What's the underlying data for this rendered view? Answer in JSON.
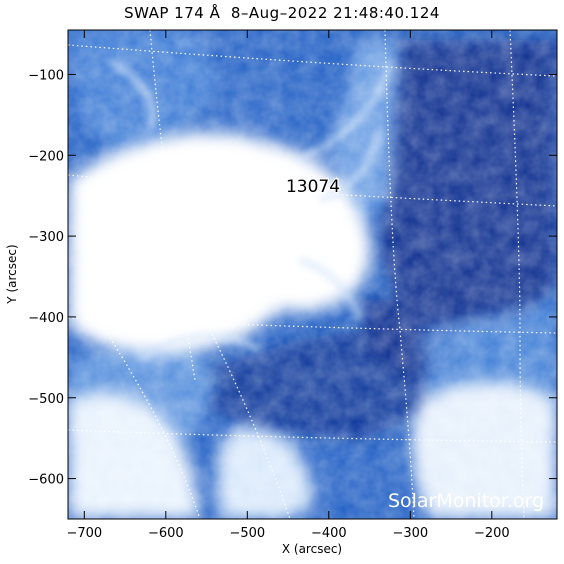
{
  "title": "SWAP 174 Å  8–Aug–2022 21:48:40.124",
  "xaxis": {
    "label": "X (arcsec)",
    "range": [
      -720,
      -120
    ],
    "ticks": [
      {
        "value": -700,
        "label": "−700"
      },
      {
        "value": -600,
        "label": "−600"
      },
      {
        "value": -500,
        "label": "−500"
      },
      {
        "value": -400,
        "label": "−400"
      },
      {
        "value": -300,
        "label": "−300"
      },
      {
        "value": -200,
        "label": "−200"
      }
    ]
  },
  "yaxis": {
    "label": "Y (arcsec)",
    "range": [
      -650,
      -45
    ],
    "ticks": [
      {
        "value": -100,
        "label": "−100"
      },
      {
        "value": -200,
        "label": "−200"
      },
      {
        "value": -300,
        "label": "−300"
      },
      {
        "value": -400,
        "label": "−400"
      },
      {
        "value": -500,
        "label": "−500"
      },
      {
        "value": -600,
        "label": "−600"
      }
    ]
  },
  "active_region": {
    "label": "13074",
    "x": -410,
    "y": -240
  },
  "watermark": "SolarMonitor.org",
  "colors": {
    "background": "#0b3ea8",
    "deep": "#0a2f8f",
    "mid": "#3f7fd8",
    "light": "#9cc4f0",
    "bright": "#ffffff",
    "grid": "#ffffff"
  }
}
